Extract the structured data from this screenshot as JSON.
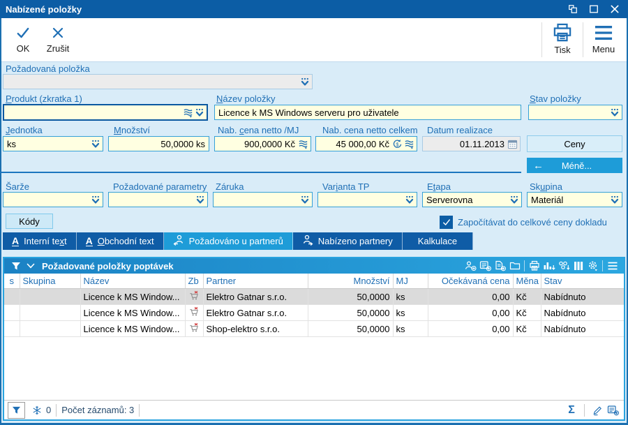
{
  "window": {
    "title": "Nabízené položky"
  },
  "titlebar_icons": [
    "restore-icon",
    "maximize-icon",
    "close-icon"
  ],
  "toolbar": {
    "ok_label": "OK",
    "cancel_label": "Zrušit",
    "print_label": "Tisk",
    "menu_label": "Menu"
  },
  "form": {
    "requested_item": {
      "label": "Požadovaná položka",
      "value": ""
    },
    "product": {
      "label": "Produkt (zkratka 1)",
      "value": ""
    },
    "item_name": {
      "label": "Název položky",
      "value": "Licence k MS Windows serveru pro uživatele"
    },
    "item_status": {
      "label": "Stav položky",
      "value": ""
    },
    "unit": {
      "label": "Jednotka",
      "value": "ks"
    },
    "quantity": {
      "label": "Množství",
      "value": "50,0000 ks"
    },
    "unit_price": {
      "label": "Nab. cena netto /MJ",
      "value": "900,0000 Kč"
    },
    "total_price": {
      "label": "Nab. cena netto celkem",
      "value": "45 000,00 Kč"
    },
    "realization_date": {
      "label": "Datum realizace",
      "value": "01.11.2013"
    },
    "prices_button": "Ceny",
    "less_button": "Méně...",
    "less_arrow": "←",
    "batch": {
      "label": "Šarže",
      "value": ""
    },
    "required_params": {
      "label": "Požadované parametry",
      "value": ""
    },
    "warranty": {
      "label": "Záruka",
      "value": ""
    },
    "variant": {
      "label": "Varianta TP",
      "value": ""
    },
    "stage": {
      "label": "Etapa",
      "value": "Serverovna"
    },
    "group": {
      "label": "Skupina",
      "value": "Materiál"
    },
    "codes_button": "Kódy",
    "include_checkbox_label": "Započítávat do celkové ceny dokladu",
    "include_checkbox_checked": true
  },
  "tabs": [
    {
      "label": "Interní text",
      "icon": "text-icon",
      "active": false
    },
    {
      "label": "Obchodní text",
      "icon": "text-icon",
      "active": false
    },
    {
      "label": "Požadováno u partnerů",
      "icon": "person-arrow-left-icon",
      "active": true
    },
    {
      "label": "Nabízeno partnery",
      "icon": "person-arrow-right-icon",
      "active": false
    },
    {
      "label": "Kalkulace",
      "icon": "",
      "active": false
    }
  ],
  "grid": {
    "title": "Požadované položky poptávek",
    "header_icons": [
      "filter-icon",
      "chevron-down-icon",
      "add-partner-icon",
      "add-record-icon",
      "add-document-icon",
      "folder-icon",
      "print-icon",
      "chart-icon",
      "related-records-icon",
      "columns-icon",
      "settings-icon",
      "menu-icon"
    ],
    "columns": [
      "s",
      "Skupina",
      "Název",
      "Zb",
      "Partner",
      "Množství",
      "MJ",
      "Očekávaná cena",
      "Měna",
      "Stav"
    ],
    "rows": [
      {
        "selected": true,
        "s": "",
        "skupina": "",
        "nazev": "Licence k MS Window...",
        "zb_icon": "cart-x-icon",
        "partner": "Elektro Gatnar s.r.o.",
        "mnozstvi": "50,0000",
        "mj": "ks",
        "cena": "0,00",
        "mena": "Kč",
        "stav": "Nabídnuto"
      },
      {
        "selected": false,
        "s": "",
        "skupina": "",
        "nazev": "Licence k MS Window...",
        "zb_icon": "cart-x-icon",
        "partner": "Elektro Gatnar s.r.o.",
        "mnozstvi": "50,0000",
        "mj": "ks",
        "cena": "0,00",
        "mena": "Kč",
        "stav": "Nabídnuto"
      },
      {
        "selected": false,
        "s": "",
        "skupina": "",
        "nazev": "Licence k MS Window...",
        "zb_icon": "cart-x-icon",
        "partner": "Shop-elektro s.r.o.",
        "mnozstvi": "50,0000",
        "mj": "ks",
        "cena": "0,00",
        "mena": "Kč",
        "stav": "Nabídnuto"
      }
    ]
  },
  "statusbar": {
    "icons": [
      "filter-icon",
      "freeze-icon",
      "sum-icon",
      "edit-icon",
      "add-form-icon"
    ],
    "frozen_count": "0",
    "record_count": "Počet záznamů: 3"
  },
  "colors": {
    "titlebar": "#0C5DA5",
    "accent_blue": "#1F6FB5",
    "active_tab": "#1E9CD8",
    "panel_border": "#29A3DF",
    "field_yellow": "#FFFFE1",
    "background": "#D9ECF8"
  }
}
